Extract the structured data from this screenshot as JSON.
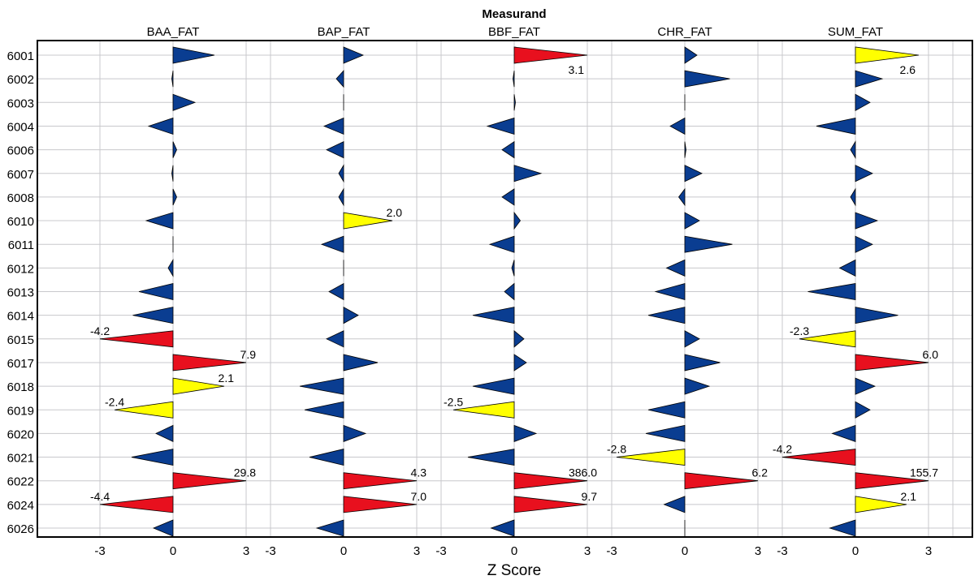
{
  "chart_data": {
    "type": "scatter",
    "title": "Measurand",
    "xlabel": "Z Score",
    "ylabel": "",
    "xlim": [
      -3.9,
      3.9
    ],
    "x_ticks": [
      "-3",
      "0",
      "3"
    ],
    "grid": true,
    "categories": [
      "6001",
      "6002",
      "6003",
      "6004",
      "6006",
      "6007",
      "6008",
      "6010",
      "6011",
      "6012",
      "6013",
      "6014",
      "6015",
      "6017",
      "6018",
      "6019",
      "6020",
      "6021",
      "6022",
      "6024",
      "6026"
    ],
    "colors": {
      "normal": "#0A3D91",
      "warning": "#FFFF00",
      "action": "#E8101E",
      "grid": "#C8C8CC"
    },
    "panels": [
      {
        "name": "BAA_FAT",
        "values": [
          1.7,
          -0.05,
          0.9,
          -1.0,
          0.15,
          -0.05,
          0.15,
          -1.1,
          0.0,
          -0.2,
          -1.4,
          -1.65,
          -3.0,
          3.0,
          2.1,
          -2.4,
          -0.7,
          -1.7,
          3.0,
          -3.0,
          -0.8
        ],
        "labels": [
          "",
          "",
          "",
          "",
          "",
          "",
          "",
          "",
          "",
          "",
          "",
          "",
          "-4.2",
          "7.9",
          "2.1",
          "-2.4",
          "",
          "",
          "29.8",
          "-4.4",
          ""
        ]
      },
      {
        "name": "BAP_FAT",
        "values": [
          0.8,
          -0.3,
          0.0,
          -0.8,
          -0.7,
          -0.2,
          -0.2,
          2.0,
          -0.9,
          0.0,
          -0.6,
          0.6,
          -0.7,
          1.4,
          -1.8,
          -1.6,
          0.9,
          -1.4,
          3.0,
          3.0,
          -1.1
        ],
        "labels": [
          "",
          "",
          "",
          "",
          "",
          "",
          "",
          "2.0",
          "",
          "",
          "",
          "",
          "",
          "",
          "",
          "",
          "",
          "",
          "4.3",
          "7.0",
          ""
        ]
      },
      {
        "name": "BBF_FAT",
        "values": [
          3.0,
          -0.05,
          0.05,
          -1.1,
          -0.5,
          1.1,
          -0.5,
          0.25,
          -1.0,
          -0.1,
          -0.4,
          -1.7,
          0.4,
          0.5,
          -1.7,
          -2.5,
          0.9,
          -1.9,
          3.0,
          3.0,
          -0.95
        ],
        "labels": [
          "3.1",
          "",
          "",
          "",
          "",
          "",
          "",
          "",
          "",
          "",
          "",
          "",
          "",
          "",
          "",
          "-2.5",
          "",
          "",
          "386.0",
          "9.7",
          ""
        ]
      },
      {
        "name": "CHR_FAT",
        "values": [
          0.5,
          1.85,
          0.0,
          -0.6,
          0.05,
          0.7,
          -0.25,
          0.6,
          1.95,
          -0.75,
          -1.2,
          -1.5,
          0.6,
          1.45,
          1.0,
          -1.5,
          -1.6,
          -2.8,
          3.0,
          -0.85,
          0.0
        ],
        "labels": [
          "",
          "",
          "",
          "",
          "",
          "",
          "",
          "",
          "",
          "",
          "",
          "",
          "",
          "",
          "",
          "",
          "",
          "-2.8",
          "6.2",
          "",
          ""
        ]
      },
      {
        "name": "SUM_FAT",
        "values": [
          2.6,
          1.1,
          0.6,
          -1.6,
          -0.2,
          0.7,
          -0.2,
          0.9,
          0.7,
          -0.65,
          -1.95,
          1.75,
          -2.3,
          3.0,
          0.8,
          0.6,
          -0.95,
          -3.0,
          3.0,
          2.1,
          -1.05
        ],
        "labels": [
          "2.6",
          "",
          "",
          "",
          "",
          "",
          "",
          "",
          "",
          "",
          "",
          "",
          "-2.3",
          "6.0",
          "",
          "",
          "",
          "-4.2",
          "155.7",
          "2.1",
          ""
        ]
      }
    ]
  }
}
